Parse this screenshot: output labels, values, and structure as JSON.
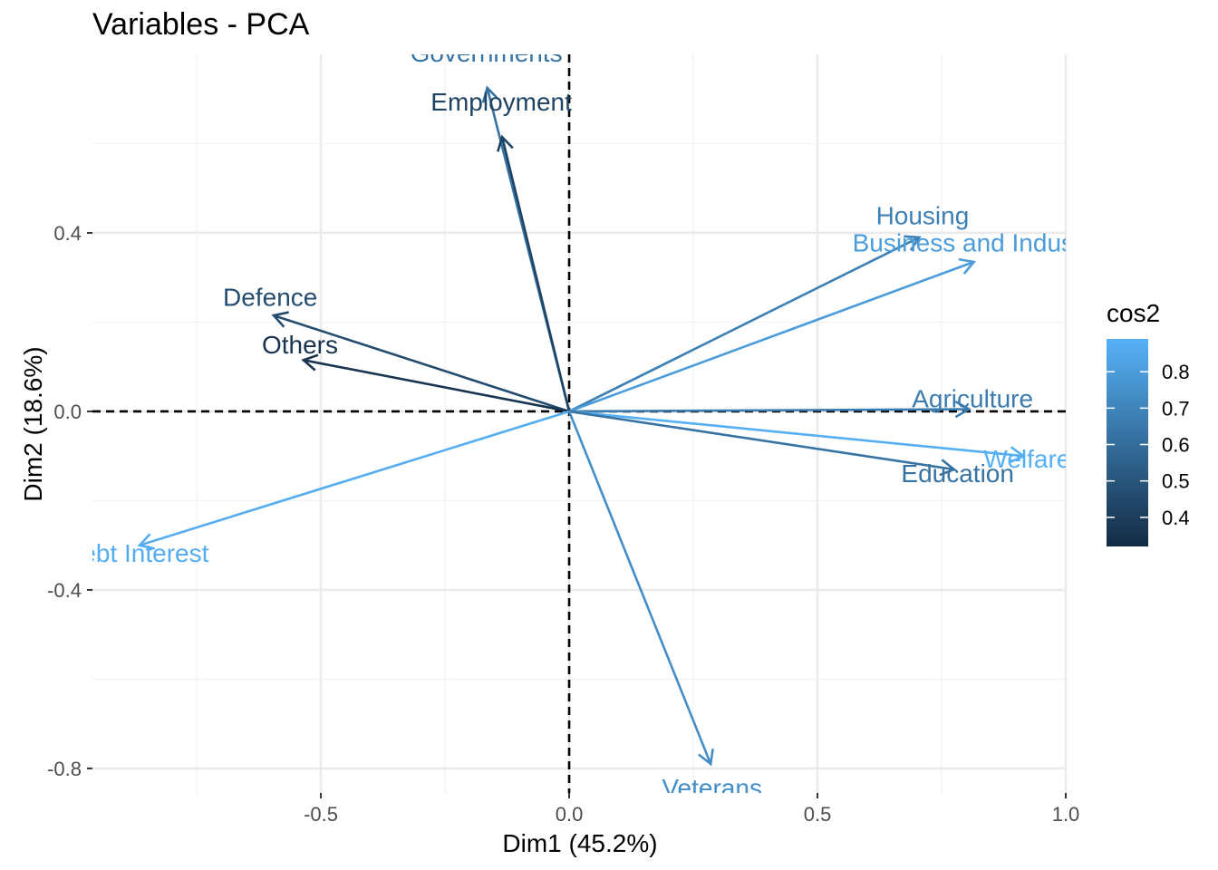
{
  "chart_data": {
    "type": "scatter",
    "subtype": "pca-variable-correlation-arrows",
    "title": "Variables - PCA",
    "xlabel": "Dim1 (45.2%)",
    "ylabel": "Dim2 (18.6%)",
    "xlim": [
      -0.96,
      1.0
    ],
    "ylim": [
      -0.855,
      0.8
    ],
    "x_ticks": [
      -0.5,
      0.0,
      0.5,
      1.0
    ],
    "x_tick_labels": [
      "-0.5",
      "0.0",
      "0.5",
      "1.0"
    ],
    "y_ticks": [
      0.4,
      0.0,
      -0.4,
      -0.8
    ],
    "y_tick_labels": [
      "0.4",
      "0.0",
      "-0.4",
      "-0.8"
    ],
    "grid": true,
    "reference_lines": {
      "x": 0,
      "y": 0,
      "style": "dashed"
    },
    "legend": {
      "title": "cos2",
      "position": "right",
      "type": "colorbar",
      "range": [
        0.32,
        0.89
      ],
      "ticks": [
        0.8,
        0.7,
        0.6,
        0.5,
        0.4
      ],
      "tick_labels": [
        "0.8",
        "0.7",
        "0.6",
        "0.5",
        "0.4"
      ],
      "color_low": "#132B43",
      "color_high": "#56B1F7"
    },
    "series": [
      {
        "label": "Governments",
        "x": -0.165,
        "y": 0.725,
        "cos2": 0.62
      },
      {
        "label": "Employment",
        "x": -0.135,
        "y": 0.615,
        "cos2": 0.42
      },
      {
        "label": "Housing",
        "x": 0.705,
        "y": 0.39,
        "cos2": 0.68
      },
      {
        "label": "Business and Industry",
        "x": 0.815,
        "y": 0.335,
        "cos2": 0.8
      },
      {
        "label": "Defence",
        "x": -0.595,
        "y": 0.215,
        "cos2": 0.46
      },
      {
        "label": "Others",
        "x": -0.535,
        "y": 0.115,
        "cos2": 0.36
      },
      {
        "label": "Agriculture",
        "x": 0.805,
        "y": 0.005,
        "cos2": 0.66
      },
      {
        "label": "Welfare",
        "x": 0.915,
        "y": -0.1,
        "cos2": 0.88
      },
      {
        "label": "Education",
        "x": 0.775,
        "y": -0.13,
        "cos2": 0.62
      },
      {
        "label": "Debt Interest",
        "x": -0.865,
        "y": -0.3,
        "cos2": 0.87
      },
      {
        "label": "Veterans",
        "x": 0.285,
        "y": -0.79,
        "cos2": 0.74
      }
    ]
  }
}
